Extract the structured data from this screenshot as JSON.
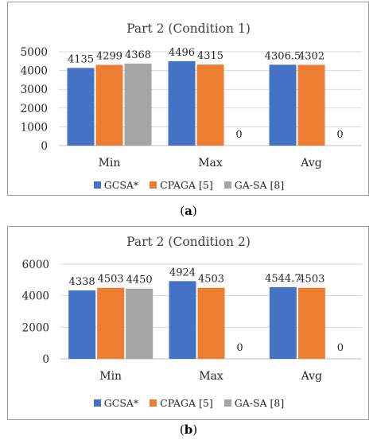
{
  "captions": {
    "a_letter": "a",
    "b_letter": "b"
  },
  "colors": {
    "GCSA": "#4472c4",
    "CPAGA": "#ed7d31",
    "GASA": "#a5a5a5",
    "grid": "#d9d9d9",
    "axis": "#bfbfbf"
  },
  "chart_data": [
    {
      "type": "bar",
      "title": "Part 2 (Condition 1)",
      "categories": [
        "Min",
        "Max",
        "Avg"
      ],
      "series": [
        {
          "name": "GCSA*",
          "values": [
            4135,
            4496,
            4306.5
          ],
          "labels": [
            "4135",
            "4496",
            "4306.5"
          ]
        },
        {
          "name": "CPAGA [5]",
          "values": [
            4299,
            4315,
            4302
          ],
          "labels": [
            "4299",
            "4315",
            "4302"
          ]
        },
        {
          "name": "GA-SA [8]",
          "values": [
            4368,
            0,
            0
          ],
          "labels": [
            "4368",
            "0",
            "0"
          ]
        }
      ],
      "yticks": [
        "0",
        "1000",
        "2000",
        "3000",
        "4000",
        "5000"
      ],
      "ylim": [
        0,
        5000
      ],
      "legend": "bottom",
      "grid": true
    },
    {
      "type": "bar",
      "title": "Part 2 (Condition 2)",
      "categories": [
        "Min",
        "Max",
        "Avg"
      ],
      "series": [
        {
          "name": "GCSA*",
          "values": [
            4338,
            4924,
            4544.7
          ],
          "labels": [
            "4338",
            "4924",
            "4544.7"
          ]
        },
        {
          "name": "CPAGA [5]",
          "values": [
            4503,
            4503,
            4503
          ],
          "labels": [
            "4503",
            "4503",
            "4503"
          ]
        },
        {
          "name": "GA-SA [8]",
          "values": [
            4450,
            0,
            0
          ],
          "labels": [
            "4450",
            "0",
            "0"
          ]
        }
      ],
      "yticks": [
        "0",
        "2000",
        "4000",
        "6000"
      ],
      "ylim": [
        0,
        6000
      ],
      "legend": "bottom",
      "grid": true
    }
  ]
}
